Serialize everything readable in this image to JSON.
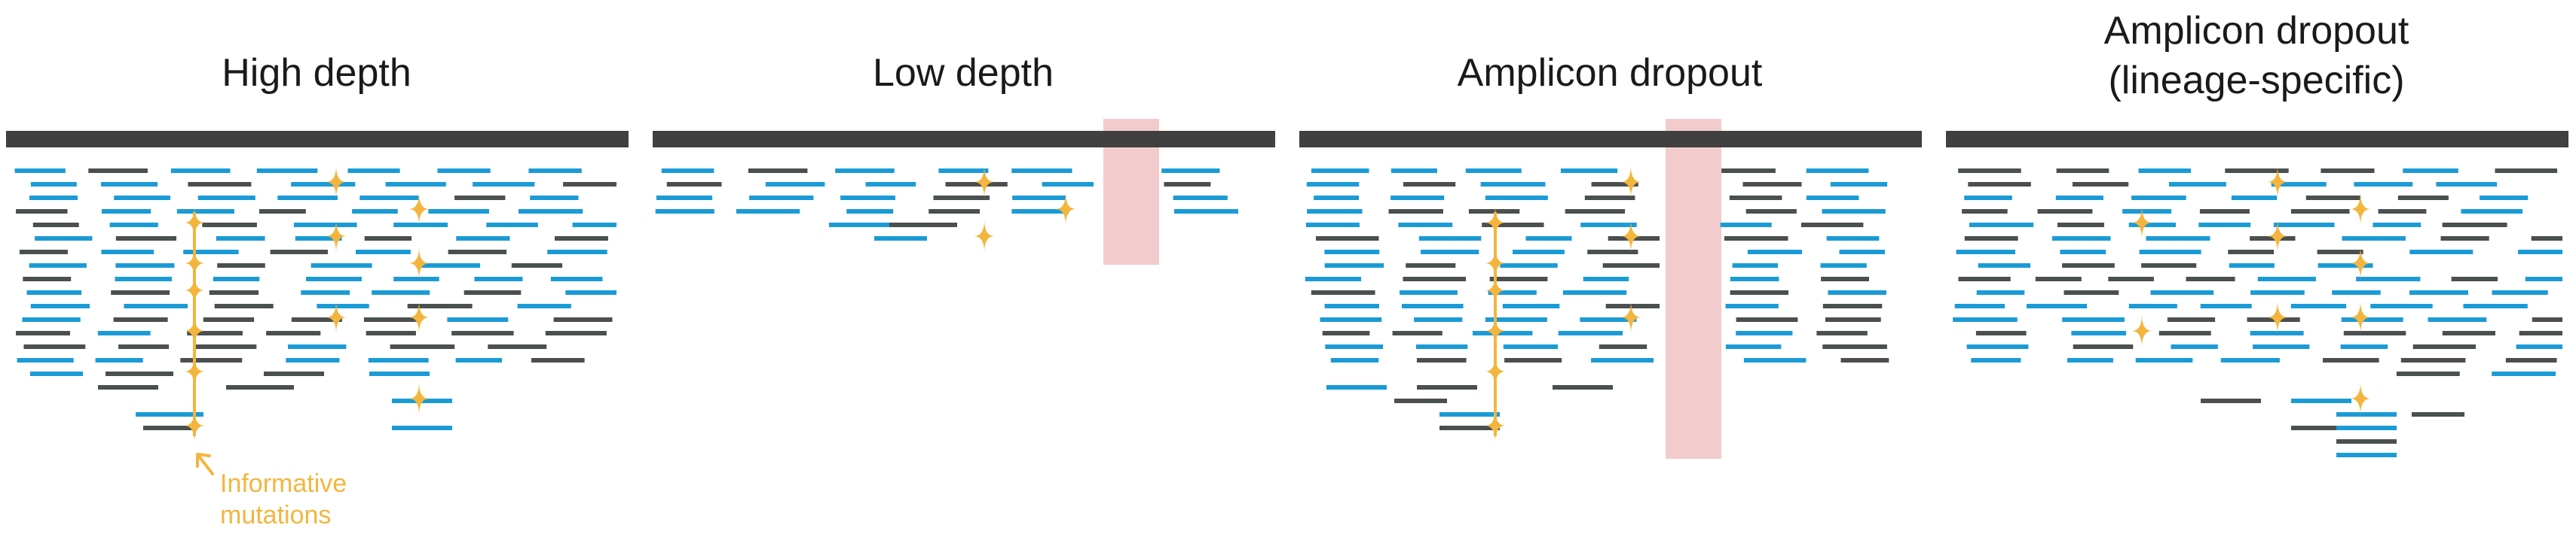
{
  "colors": {
    "reference_bar": "#404040",
    "read_blue": "#1b9bd6",
    "read_gray": "#4a4f4f",
    "mutation_star": "#f3b53d",
    "dropout_band": "#f2cccc",
    "background": "#ffffff"
  },
  "icons": {
    "mutation_marker": "four-point-star-icon",
    "callout_pointer": "arrow-icon"
  },
  "callout": {
    "line1": "Informative",
    "line2": "mutations"
  },
  "panels": [
    {
      "key": "high-depth",
      "title_lines": [
        "High depth"
      ]
    },
    {
      "key": "low-depth",
      "title_lines": [
        "Low depth"
      ]
    },
    {
      "key": "amplicon-dropout",
      "title_lines": [
        "Amplicon dropout"
      ]
    },
    {
      "key": "lineage-dropout",
      "title_lines": [
        "Amplicon dropout",
        "(lineage-specific)"
      ]
    }
  ]
}
